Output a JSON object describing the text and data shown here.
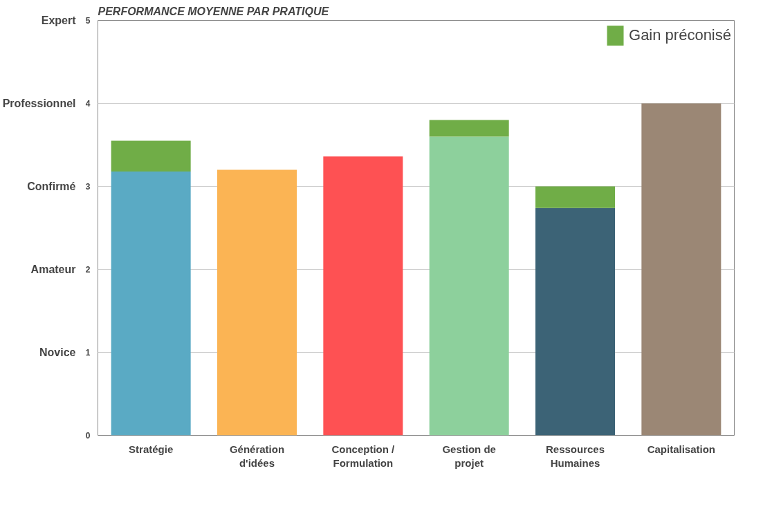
{
  "chart_data": {
    "type": "bar",
    "title": "PERFORMANCE MOYENNE PAR PRATIQUE",
    "stacked": true,
    "categories": [
      "Stratégie",
      "Génération\nd'idées",
      "Conception /\nFormulation",
      "Gestion de\nprojet",
      "Ressources\nHumaines",
      "Capitalisation"
    ],
    "series": [
      {
        "colors": [
          "#5aaac4",
          "#fbb454",
          "#fe5153",
          "#8dd09c",
          "#3c6376",
          "#9b8775"
        ],
        "values": [
          3.18,
          3.2,
          3.36,
          3.6,
          2.74,
          4.0
        ]
      },
      {
        "name": "Gain préconisé",
        "color": "#70ad47",
        "values": [
          0.37,
          null,
          null,
          0.2,
          0.26,
          null
        ]
      }
    ],
    "ylim": [
      0,
      5
    ],
    "yticks": [
      0,
      1,
      2,
      3,
      4,
      5
    ],
    "y2_categories": [
      "Expert",
      "Professionnel",
      "Confirmé",
      "Amateur",
      "Novice",
      null
    ],
    "grid": "y",
    "legend": "top right"
  }
}
